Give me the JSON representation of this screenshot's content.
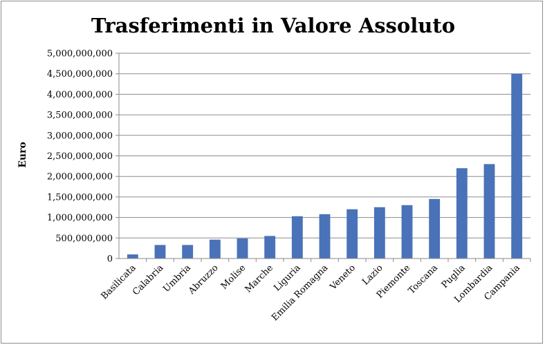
{
  "chart_data": {
    "type": "bar",
    "title": "Trasferimenti in Valore Assoluto",
    "xlabel": "",
    "ylabel": "Euro",
    "ylim": [
      0,
      5000000000
    ],
    "yticks": [
      0,
      500000000,
      1000000000,
      1500000000,
      2000000000,
      2500000000,
      3000000000,
      3500000000,
      4000000000,
      4500000000,
      5000000000
    ],
    "ytick_labels": [
      "0",
      "500,000,000",
      "1,000,000,000",
      "1,500,000,000",
      "2,000,000,000",
      "2,500,000,000",
      "3,000,000,000",
      "3,500,000,000",
      "4,000,000,000",
      "4,500,000,000",
      "5,000,000,000"
    ],
    "grid": true,
    "categories": [
      "Basilicata",
      "Calabria",
      "Umbria",
      "Abruzzo",
      "Molise",
      "Marche",
      "Liguria",
      "Emilia Romagna",
      "Veneto",
      "Lazio",
      "Piemonte",
      "Toscana",
      "Puglia",
      "Lombardia",
      "Campania"
    ],
    "values": [
      100000000,
      330000000,
      330000000,
      460000000,
      490000000,
      550000000,
      1030000000,
      1080000000,
      1200000000,
      1250000000,
      1300000000,
      1450000000,
      2200000000,
      2300000000,
      4500000000
    ],
    "bar_color": "#4a72b8"
  }
}
